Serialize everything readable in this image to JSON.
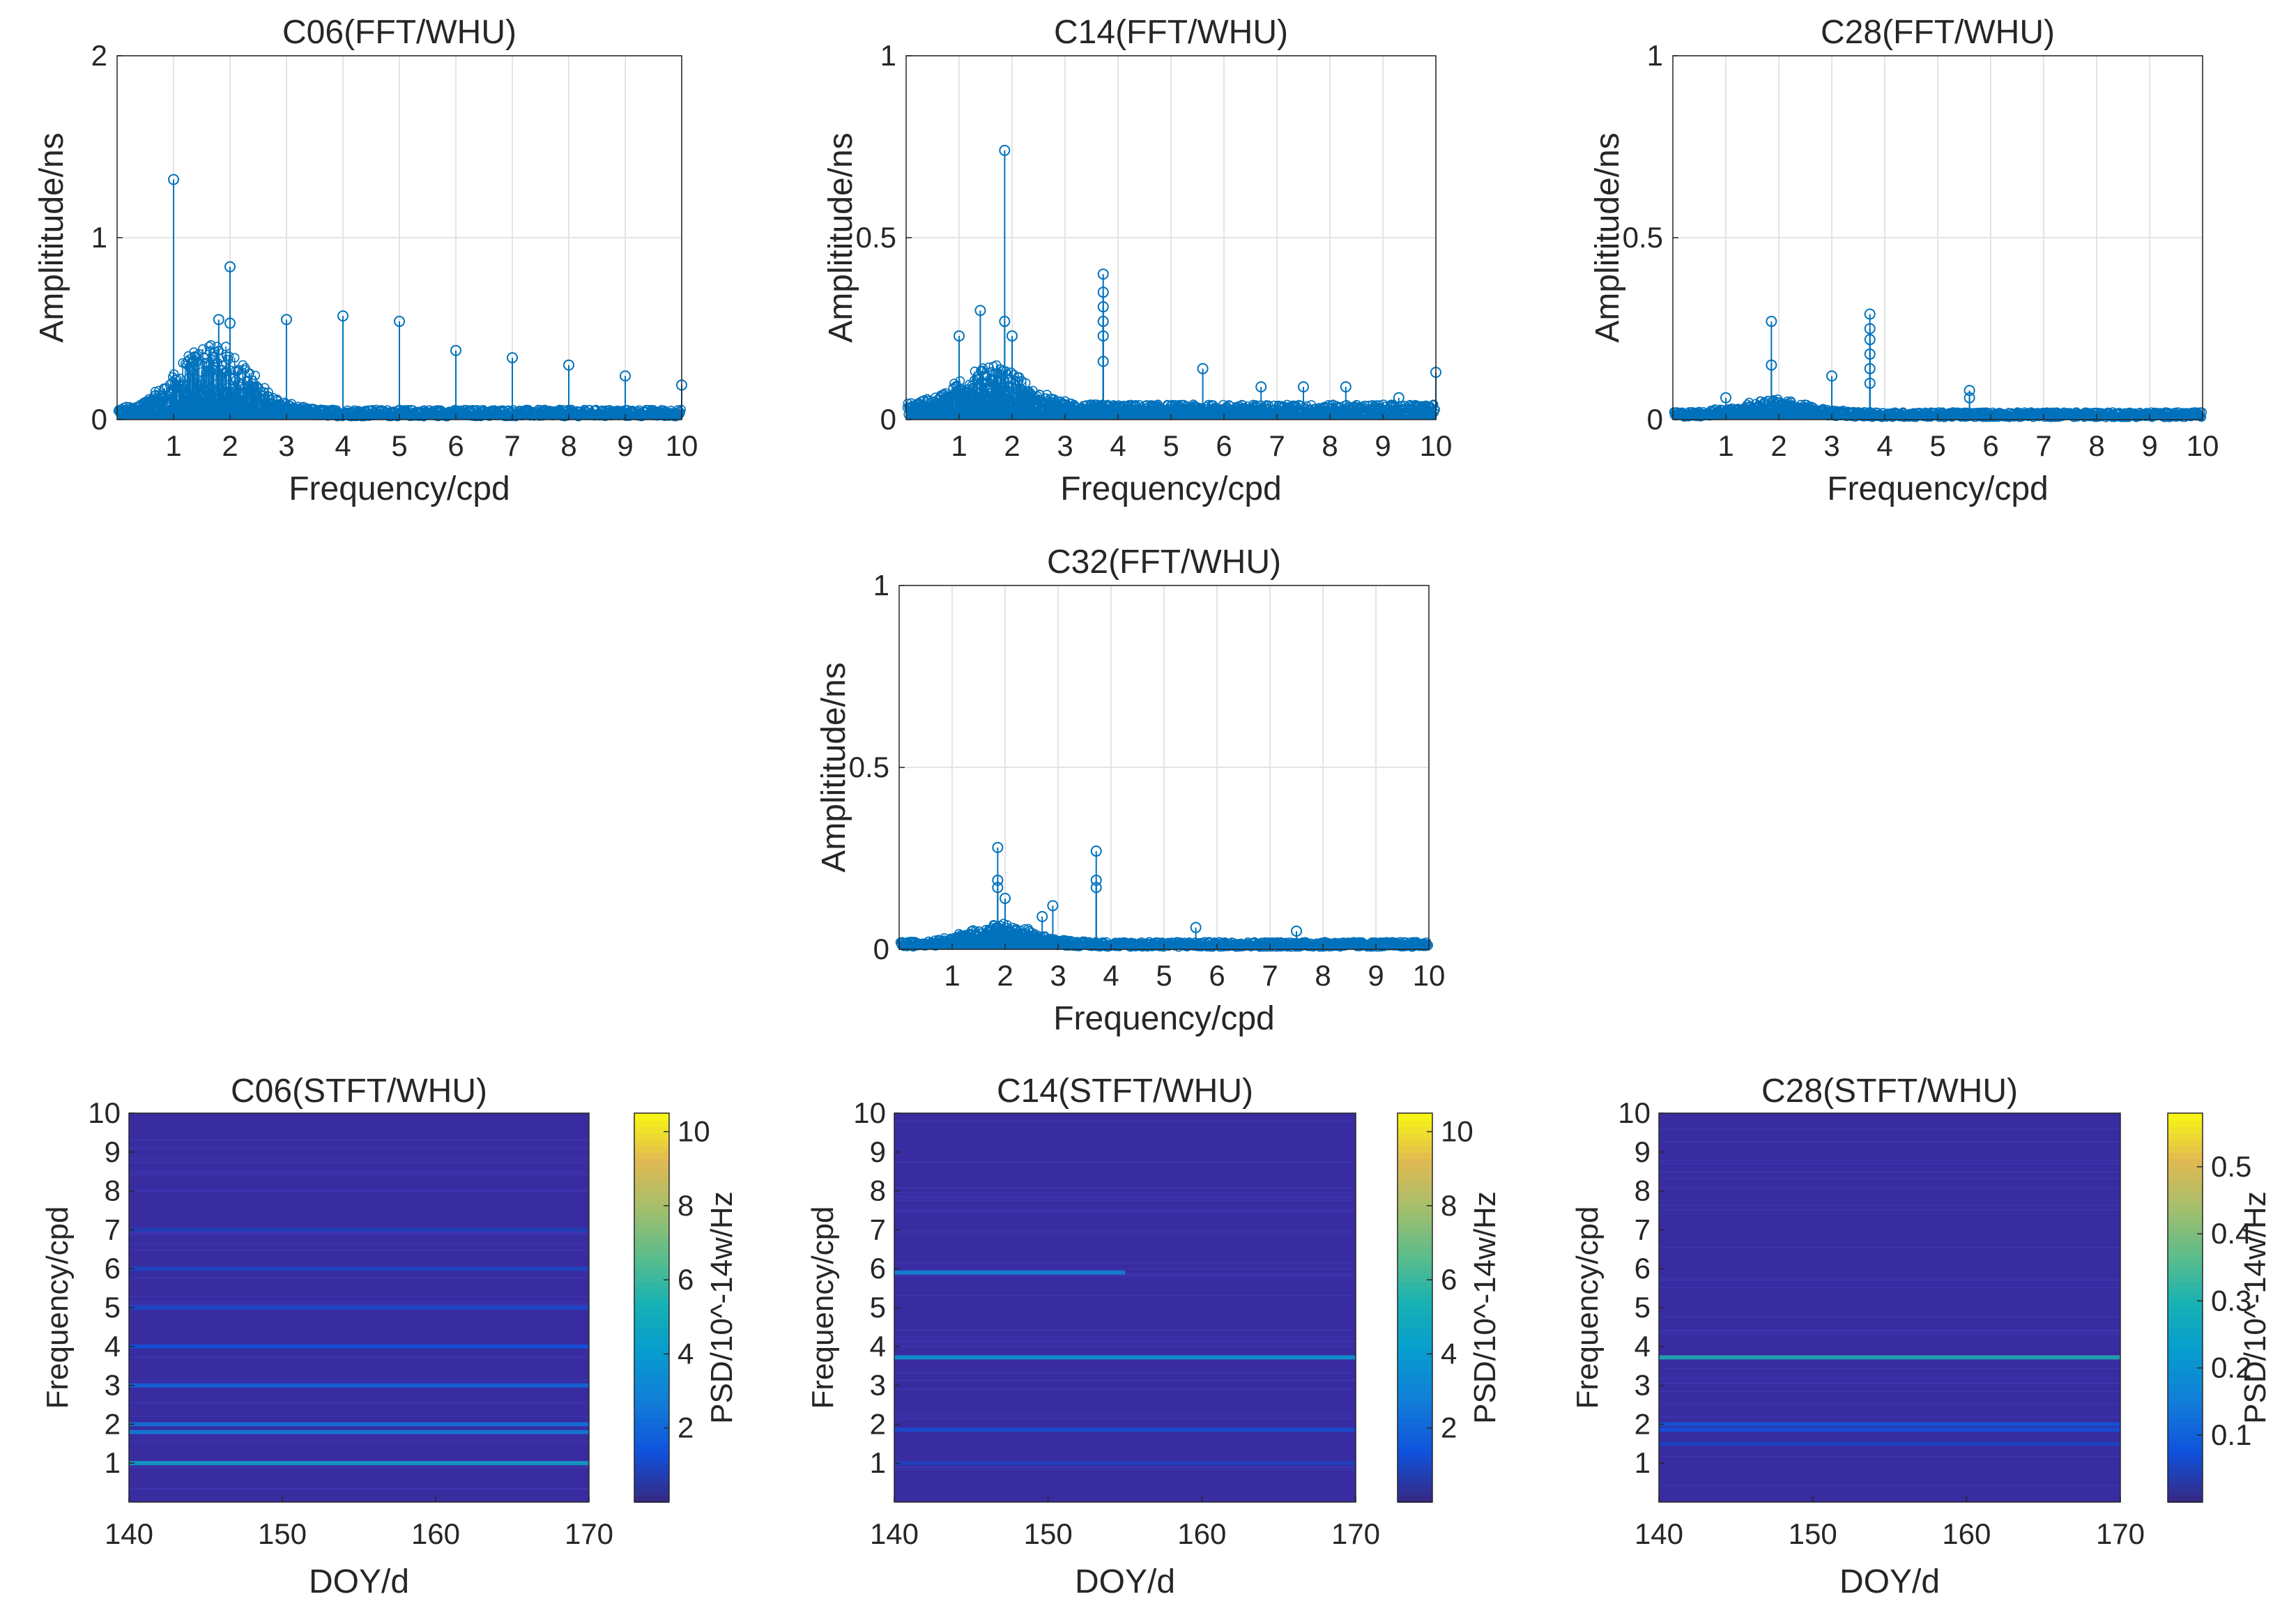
{
  "figure": {
    "fft_xlabel": "Frequency/cpd",
    "fft_ylabel": "Amplititude/ns",
    "stft_xlabel": "DOY/d",
    "stft_ylabel": "Frequency/cpd",
    "colorbar_label": "PSD/10^-14w/Hz"
  },
  "chart_data": [
    {
      "type": "stem",
      "title": "C06(FFT/WHU)",
      "xlabel": "Frequency/cpd",
      "ylabel": "Amplititude/ns",
      "xlim": [
        0,
        10
      ],
      "ylim": [
        0,
        2
      ],
      "xticks": [
        1,
        2,
        3,
        4,
        5,
        6,
        7,
        8,
        9,
        10
      ],
      "yticks": [
        0,
        1,
        2
      ],
      "grid": true,
      "noise_floor": 0.04,
      "hump": {
        "center": 1.7,
        "width": 0.9,
        "height": 0.3
      },
      "peaks": [
        {
          "x": 1.0,
          "y": 1.32
        },
        {
          "x": 2.0,
          "y": 0.84
        },
        {
          "x": 1.8,
          "y": 0.55
        },
        {
          "x": 2.0,
          "y": 0.53
        },
        {
          "x": 3.0,
          "y": 0.55
        },
        {
          "x": 4.0,
          "y": 0.57
        },
        {
          "x": 5.0,
          "y": 0.54
        },
        {
          "x": 6.0,
          "y": 0.38
        },
        {
          "x": 7.0,
          "y": 0.34
        },
        {
          "x": 8.0,
          "y": 0.3
        },
        {
          "x": 9.0,
          "y": 0.24
        },
        {
          "x": 10.0,
          "y": 0.19
        }
      ]
    },
    {
      "type": "stem",
      "title": "C14(FFT/WHU)",
      "xlabel": "Frequency/cpd",
      "ylabel": "Amplititude/ns",
      "xlim": [
        0,
        10
      ],
      "ylim": [
        0,
        1
      ],
      "xticks": [
        1,
        2,
        3,
        4,
        5,
        6,
        7,
        8,
        9,
        10
      ],
      "yticks": [
        0,
        0.5,
        1
      ],
      "grid": true,
      "noise_floor": 0.03,
      "hump": {
        "center": 1.6,
        "width": 0.9,
        "height": 0.09
      },
      "peaks": [
        {
          "x": 1.86,
          "y": 0.74
        },
        {
          "x": 1.4,
          "y": 0.3
        },
        {
          "x": 1.86,
          "y": 0.27
        },
        {
          "x": 1.0,
          "y": 0.23
        },
        {
          "x": 2.0,
          "y": 0.23
        },
        {
          "x": 3.72,
          "y": 0.4
        },
        {
          "x": 3.72,
          "y": 0.35
        },
        {
          "x": 3.72,
          "y": 0.31
        },
        {
          "x": 3.72,
          "y": 0.27
        },
        {
          "x": 3.72,
          "y": 0.23
        },
        {
          "x": 3.72,
          "y": 0.16
        },
        {
          "x": 5.6,
          "y": 0.14
        },
        {
          "x": 6.7,
          "y": 0.09
        },
        {
          "x": 7.5,
          "y": 0.09
        },
        {
          "x": 8.3,
          "y": 0.09
        },
        {
          "x": 9.3,
          "y": 0.06
        },
        {
          "x": 10.0,
          "y": 0.13
        }
      ]
    },
    {
      "type": "stem",
      "title": "C28(FFT/WHU)",
      "xlabel": "Frequency/cpd",
      "ylabel": "Amplititude/ns",
      "xlim": [
        0,
        10
      ],
      "ylim": [
        0,
        1
      ],
      "xticks": [
        1,
        2,
        3,
        4,
        5,
        6,
        7,
        8,
        9,
        10
      ],
      "yticks": [
        0,
        0.5,
        1
      ],
      "grid": true,
      "noise_floor": 0.015,
      "hump": {
        "center": 1.9,
        "width": 0.9,
        "height": 0.03
      },
      "peaks": [
        {
          "x": 1.86,
          "y": 0.27
        },
        {
          "x": 1.86,
          "y": 0.15
        },
        {
          "x": 1.0,
          "y": 0.06
        },
        {
          "x": 3.0,
          "y": 0.12
        },
        {
          "x": 3.72,
          "y": 0.29
        },
        {
          "x": 3.72,
          "y": 0.25
        },
        {
          "x": 3.72,
          "y": 0.22
        },
        {
          "x": 3.72,
          "y": 0.18
        },
        {
          "x": 3.72,
          "y": 0.14
        },
        {
          "x": 3.72,
          "y": 0.1
        },
        {
          "x": 5.6,
          "y": 0.08
        },
        {
          "x": 5.6,
          "y": 0.06
        }
      ]
    },
    {
      "type": "stem",
      "title": "C32(FFT/WHU)",
      "xlabel": "Frequency/cpd",
      "ylabel": "Amplititude/ns",
      "xlim": [
        0,
        10
      ],
      "ylim": [
        0,
        1
      ],
      "xticks": [
        1,
        2,
        3,
        4,
        5,
        6,
        7,
        8,
        9,
        10
      ],
      "yticks": [
        0,
        0.5,
        1
      ],
      "grid": true,
      "noise_floor": 0.015,
      "hump": {
        "center": 1.9,
        "width": 0.9,
        "height": 0.04
      },
      "peaks": [
        {
          "x": 1.86,
          "y": 0.28
        },
        {
          "x": 1.86,
          "y": 0.19
        },
        {
          "x": 1.86,
          "y": 0.17
        },
        {
          "x": 2.0,
          "y": 0.14
        },
        {
          "x": 2.9,
          "y": 0.12
        },
        {
          "x": 2.7,
          "y": 0.09
        },
        {
          "x": 3.72,
          "y": 0.27
        },
        {
          "x": 3.72,
          "y": 0.19
        },
        {
          "x": 3.72,
          "y": 0.17
        },
        {
          "x": 5.6,
          "y": 0.06
        },
        {
          "x": 7.5,
          "y": 0.05
        }
      ]
    },
    {
      "type": "heatmap",
      "title": "C06(STFT/WHU)",
      "xlabel": "DOY/d",
      "ylabel": "Frequency/cpd",
      "xlim": [
        140,
        170
      ],
      "ylim": [
        0,
        10
      ],
      "xticks": [
        140,
        150,
        160,
        170
      ],
      "yticks": [
        1,
        2,
        3,
        4,
        5,
        6,
        7,
        8,
        9,
        10
      ],
      "colorbar": {
        "label": "PSD/10^-14w/Hz",
        "range": [
          0,
          10.5
        ],
        "ticks": [
          2,
          4,
          6,
          8,
          10
        ]
      },
      "lines": [
        {
          "freq": 1.0,
          "value": 4.5
        },
        {
          "freq": 1.8,
          "value": 2.8
        },
        {
          "freq": 2.0,
          "value": 2.4
        },
        {
          "freq": 3.0,
          "value": 2.0
        },
        {
          "freq": 4.0,
          "value": 1.3
        },
        {
          "freq": 5.0,
          "value": 1.0
        },
        {
          "freq": 6.0,
          "value": 0.9
        },
        {
          "freq": 7.0,
          "value": 0.7
        }
      ]
    },
    {
      "type": "heatmap",
      "title": "C14(STFT/WHU)",
      "xlabel": "DOY/d",
      "ylabel": "Frequency/cpd",
      "xlim": [
        140,
        170
      ],
      "ylim": [
        0,
        10
      ],
      "xticks": [
        140,
        150,
        160,
        170
      ],
      "yticks": [
        1,
        2,
        3,
        4,
        5,
        6,
        7,
        8,
        9,
        10
      ],
      "colorbar": {
        "label": "PSD/10^-14w/Hz",
        "range": [
          0,
          10.5
        ],
        "ticks": [
          2,
          4,
          6,
          8,
          10
        ]
      },
      "lines": [
        {
          "freq": 5.9,
          "value": 3.2
        },
        {
          "freq": 3.72,
          "value": 4.0
        },
        {
          "freq": 1.86,
          "value": 1.1
        },
        {
          "freq": 1.0,
          "value": 0.8
        }
      ]
    },
    {
      "type": "heatmap",
      "title": "C28(STFT/WHU)",
      "xlabel": "DOY/d",
      "ylabel": "Frequency/cpd",
      "xlim": [
        140,
        170
      ],
      "ylim": [
        0,
        10
      ],
      "xticks": [
        140,
        150,
        160,
        170
      ],
      "yticks": [
        1,
        2,
        3,
        4,
        5,
        6,
        7,
        8,
        9,
        10
      ],
      "colorbar": {
        "label": "PSD/10^-14w/Hz",
        "range": [
          0,
          0.58
        ],
        "ticks": [
          0.1,
          0.2,
          0.3,
          0.4,
          0.5
        ]
      },
      "lines": [
        {
          "freq": 3.72,
          "value": 0.3
        },
        {
          "freq": 2.0,
          "value": 0.08
        },
        {
          "freq": 1.86,
          "value": 0.07
        },
        {
          "freq": 1.5,
          "value": 0.05
        }
      ]
    }
  ]
}
